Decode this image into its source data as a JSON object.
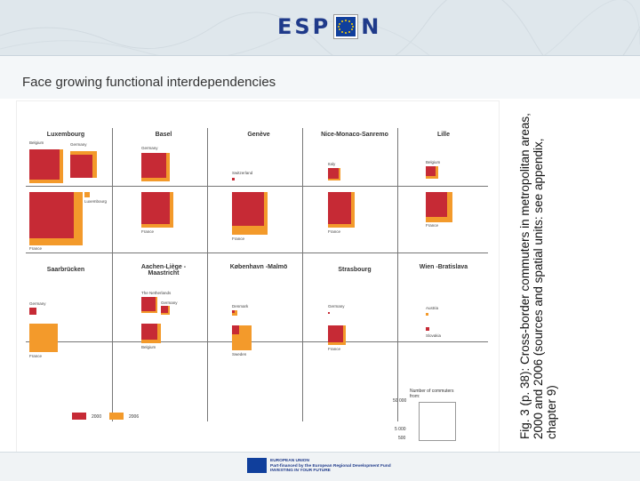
{
  "header": {
    "logo_left": "ESP",
    "logo_right": "N"
  },
  "slide": {
    "title": "Face growing functional interdependencies"
  },
  "caption": "Fig. 3 (p. 38): Cross-border commuters in metropolitan areas, 2000 and 2006 (sources and spatial units: see appendix, chapter 9)",
  "figure": {
    "cities": [
      "Luxembourg",
      "Basel",
      "Genève",
      "Nice-Monaco-Sanremo",
      "Lille",
      "Saarbrücken",
      "Aachen-Liège -Maastricht",
      "København -Malmö",
      "Strasbourg",
      "Wien -Bratislava"
    ],
    "labels": {
      "belgium": "Belgium",
      "germany": "Germany",
      "luxembourg": "Luxembourg",
      "france": "France",
      "switzerland": "Switzerland",
      "italy": "Italy",
      "netherlands": "The Netherlands",
      "denmark": "Denmark",
      "sweden": "Sweden",
      "austria": "Austria",
      "slovakia": "Slovakia"
    },
    "legend": {
      "title": "Number of commuters from:",
      "v1": "50 000",
      "v2": "5 000",
      "v3": "500",
      "y2000": "2000",
      "y2006": "2006"
    }
  },
  "footer": {
    "line1": "EUROPEAN UNION",
    "line2": "Part-financed by the European Regional Development Fund",
    "line3": "INVESTING IN YOUR FUTURE"
  },
  "colors": {
    "series_2000": "#c62a35",
    "series_2006": "#f39a2b",
    "logo_blue": "#1f3a8a"
  }
}
